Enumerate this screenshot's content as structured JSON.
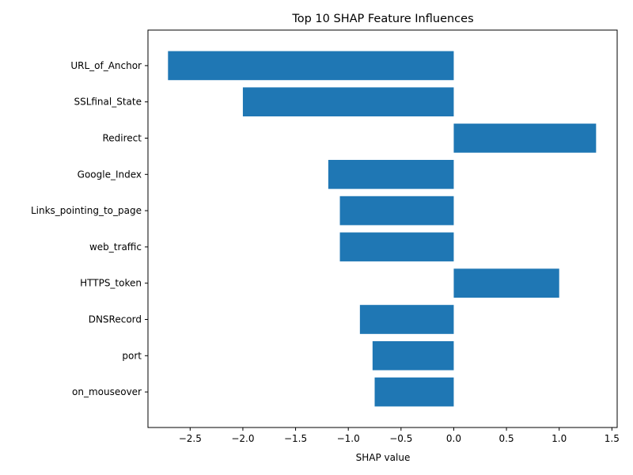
{
  "chart_data": {
    "type": "bar",
    "orientation": "horizontal",
    "title": "Top 10 SHAP Feature Influences",
    "xlabel": "SHAP value",
    "ylabel": "",
    "categories": [
      "URL_of_Anchor",
      "SSLfinal_State",
      "Redirect",
      "Google_Index",
      "Links_pointing_to_page",
      "web_traffic",
      "HTTPS_token",
      "DNSRecord",
      "port",
      "on_mouseover"
    ],
    "values": [
      -2.71,
      -2.0,
      1.35,
      -1.19,
      -1.08,
      -1.08,
      1.0,
      -0.89,
      -0.77,
      -0.75
    ],
    "xlim": [
      -2.9,
      1.55
    ],
    "xticks": [
      -2.5,
      -2.0,
      -1.5,
      -1.0,
      -0.5,
      0.0,
      0.5,
      1.0,
      1.5
    ],
    "xtick_labels": [
      "−2.5",
      "−2.0",
      "−1.5",
      "−1.0",
      "−0.5",
      "0.0",
      "0.5",
      "1.0",
      "1.5"
    ],
    "bar_color": "#1f77b4",
    "grid": false,
    "legend": "none"
  }
}
